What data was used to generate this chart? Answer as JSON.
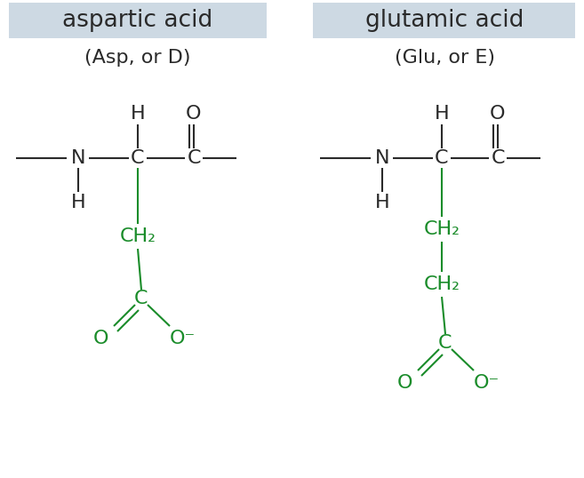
{
  "bg_color": "#ffffff",
  "header_bg": "#cdd9e3",
  "title_left": "aspartic acid",
  "title_right": "glutamic acid",
  "subtitle_left": "(Asp, or D)",
  "subtitle_right": "(Glu, or E)",
  "black": "#2a2a2a",
  "green": "#1a8c2a",
  "font_size_title": 19,
  "font_size_sub": 16,
  "font_size_atom": 16
}
